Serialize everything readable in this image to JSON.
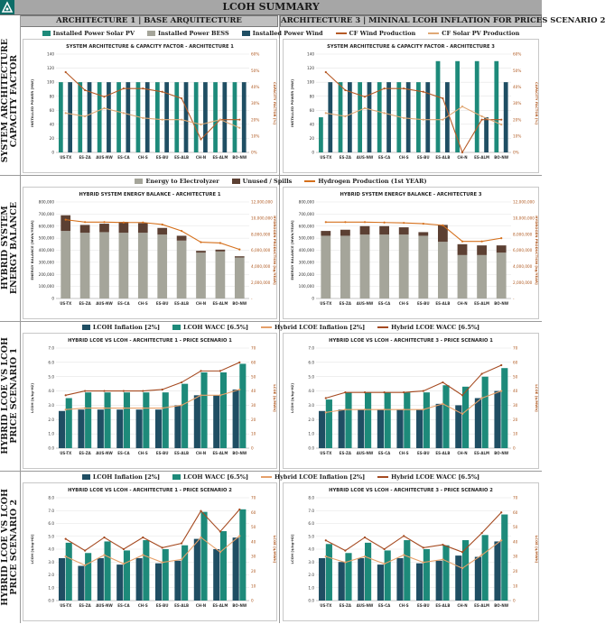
{
  "page_title": "LCOH SUMMARY",
  "columns": [
    "ARCHITECTURE 1 | BASE ARQUITECTURE",
    "ARCHITECTURE 3 | MININAL LCOH INFLATION FOR PRICES SCENARIO 2"
  ],
  "row_labels": [
    "SYSTEM ARCHITECTURE\nCAPACITY FACTOR",
    "HYBRID SYSTEM\nENERGY BALANCE",
    "HYBRID LCOE VS LCOH\nPRICE SCENARIO 1",
    "HYBRID LCOE VS LCOH\nPRICE SCENARIO 2"
  ],
  "legends": {
    "row1": [
      "Installed Power Solar PV",
      "Installed Power BESS",
      "Installed Power Wind",
      "CF Wind Production",
      "CF Solar PV Production"
    ],
    "row2": [
      "Energy to Electrolyzer",
      "Unused / Spills",
      "Hydrogen Production (1st YEAR)"
    ],
    "row3": [
      "LCOH Inflation [2%]",
      "LCOH WACC [6.5%]",
      "Hybrid LCOE Inflation [2%]",
      "Hybrid LCOE WACC [6.5%]"
    ],
    "row4": [
      "LCOH Inflation [2%]",
      "LCOH WACC [6.5%]",
      "Hybrid LCOE Inflation [2%]",
      "Hybrid LCOE WACC [6.5%]"
    ]
  },
  "colors": {
    "solar": "#1d8a7a",
    "bess": "#a5a59a",
    "wind": "#1f4e63",
    "cf_wind": "#b65a26",
    "cf_solar": "#e0a875",
    "energy": "#a5a59a",
    "unused": "#5c4033",
    "h2": "#d5701c",
    "lcoh_inf": "#1f4e63",
    "lcoh_wacc": "#1d8a7a",
    "lcoe_inf": "#e6a06a",
    "lcoe_wacc": "#a54a20"
  },
  "chart_data": [
    {
      "type": "bar",
      "id": "r1a1",
      "title": "SYSTEM ARCHITECTURE & CAPACITY FACTOR - ARCHITECTURE 1",
      "ylabel": "INSTALLED POWER [MW]",
      "y2label": "CAPACITY FACTOR [%]",
      "ylim": [
        0,
        140
      ],
      "yticks": [
        0,
        20,
        40,
        60,
        80,
        100,
        120,
        140
      ],
      "y2lim": [
        0,
        0.6
      ],
      "y2ticks": [
        "0%",
        "10%",
        "20%",
        "30%",
        "40%",
        "50%",
        "60%"
      ],
      "categories": [
        "US-TX",
        "ES-ZA",
        "AUS-NW",
        "ES-CA",
        "CH-S",
        "ES-BU",
        "ES-ALB",
        "CH-N",
        "ES-ALM",
        "BO-NW"
      ],
      "series": [
        {
          "name": "Installed Power Solar PV",
          "kind": "bar",
          "values": [
            100,
            100,
            100,
            100,
            100,
            100,
            100,
            100,
            100,
            100
          ]
        },
        {
          "name": "Installed Power BESS",
          "kind": "bar",
          "values": [
            0,
            0,
            0,
            0,
            0,
            0,
            0,
            0,
            0,
            0
          ]
        },
        {
          "name": "Installed Power Wind",
          "kind": "bar",
          "values": [
            100,
            100,
            100,
            100,
            100,
            100,
            100,
            100,
            100,
            100
          ]
        },
        {
          "name": "CF Wind Production",
          "kind": "line",
          "axis": "y2",
          "values": [
            0.49,
            0.38,
            0.34,
            0.39,
            0.39,
            0.37,
            0.33,
            0.08,
            0.2,
            0.2
          ]
        },
        {
          "name": "CF Solar PV Production",
          "kind": "line",
          "axis": "y2",
          "values": [
            0.24,
            0.22,
            0.27,
            0.24,
            0.21,
            0.2,
            0.2,
            0.17,
            0.2,
            0.15
          ]
        }
      ]
    },
    {
      "type": "bar",
      "id": "r1a3",
      "title": "SYSTEM ARCHITECTURE & CAPACITY FACTOR - ARCHITECTURE 3",
      "ylabel": "INSTALLED POWER [MW]",
      "y2label": "CAPACITY FACTOR [%]",
      "ylim": [
        0,
        140
      ],
      "yticks": [
        0,
        20,
        40,
        60,
        80,
        100,
        120,
        140
      ],
      "y2lim": [
        0,
        0.6
      ],
      "y2ticks": [
        "0%",
        "10%",
        "20%",
        "30%",
        "40%",
        "50%",
        "60%"
      ],
      "categories": [
        "US-TX",
        "ES-ZA",
        "AUS-NW",
        "ES-CA",
        "CH-S",
        "ES-BU",
        "ES-ALB",
        "CH-N",
        "ES-ALM",
        "BO-NW"
      ],
      "series": [
        {
          "name": "Installed Power Solar PV",
          "kind": "bar",
          "values": [
            50,
            100,
            100,
            100,
            100,
            100,
            130,
            130,
            130,
            130
          ]
        },
        {
          "name": "Installed Power BESS",
          "kind": "bar",
          "values": [
            0,
            0,
            0,
            0,
            0,
            0,
            0,
            0,
            0,
            0
          ]
        },
        {
          "name": "Installed Power Wind",
          "kind": "bar",
          "values": [
            100,
            100,
            100,
            100,
            100,
            100,
            100,
            0,
            50,
            100
          ]
        },
        {
          "name": "CF Wind Production",
          "kind": "line",
          "axis": "y2",
          "values": [
            0.49,
            0.38,
            0.34,
            0.39,
            0.39,
            0.37,
            0.33,
            0.0,
            0.2,
            0.2
          ]
        },
        {
          "name": "CF Solar PV Production",
          "kind": "line",
          "axis": "y2",
          "values": [
            0.24,
            0.22,
            0.27,
            0.24,
            0.21,
            0.2,
            0.2,
            0.28,
            0.22,
            0.17
          ]
        }
      ]
    },
    {
      "type": "bar",
      "id": "r2a1",
      "title": "HYBRID SYSTEM ENERGY BALANCE - ARCHITECTURE 1",
      "ylabel": "ENERGY BALANCE [MWh/YEAR]",
      "y2label": "HYDROGEN PRODUCTION [kg/YEAR]",
      "ylim": [
        0,
        800000
      ],
      "yticks": [
        "0",
        "100,000",
        "200,000",
        "300,000",
        "400,000",
        "500,000",
        "600,000",
        "700,000",
        "800,000"
      ],
      "y2lim": [
        0,
        12000000
      ],
      "y2ticks": [
        "-",
        "2,000,000",
        "4,000,000",
        "6,000,000",
        "8,000,000",
        "10,000,000",
        "12,000,000"
      ],
      "categories": [
        "US-TX",
        "ES-ZA",
        "AUS-NW",
        "ES-CA",
        "CH-S",
        "ES-BU",
        "ES-ALB",
        "CH-N",
        "ES-ALM",
        "BO-NW"
      ],
      "series": [
        {
          "name": "Energy to Electrolyzer",
          "kind": "stack",
          "values": [
            560000,
            545000,
            550000,
            545000,
            545000,
            530000,
            480000,
            380000,
            390000,
            340000
          ]
        },
        {
          "name": "Unused / Spills",
          "kind": "stack",
          "values": [
            130000,
            65000,
            70000,
            90000,
            80000,
            55000,
            40000,
            15000,
            15000,
            10000
          ]
        },
        {
          "name": "Hydrogen Production (1st YEAR)",
          "kind": "line",
          "axis": "y2",
          "values": [
            9800000,
            9500000,
            9500000,
            9450000,
            9450000,
            9200000,
            8400000,
            7000000,
            6900000,
            6100000
          ]
        }
      ]
    },
    {
      "type": "bar",
      "id": "r2a3",
      "title": "HYBRID SYSTEM ENERGY BALANCE - ARCHITECTURE 3",
      "ylabel": "ENERGY BALANCE [MWh/YEAR]",
      "y2label": "HYDROGEN PRODUCTION [kg/YEAR]",
      "ylim": [
        0,
        800000
      ],
      "yticks": [
        "0",
        "100,000",
        "200,000",
        "300,000",
        "400,000",
        "500,000",
        "600,000",
        "700,000",
        "800,000"
      ],
      "y2lim": [
        0,
        12000000
      ],
      "y2ticks": [
        "-",
        "2,000,000",
        "4,000,000",
        "6,000,000",
        "8,000,000",
        "10,000,000",
        "12,000,000"
      ],
      "categories": [
        "US-TX",
        "ES-ZA",
        "AUS-NW",
        "ES-CA",
        "CH-S",
        "ES-BU",
        "ES-ALB",
        "CH-N",
        "ES-ALM",
        "BO-NW"
      ],
      "series": [
        {
          "name": "Energy to Electrolyzer",
          "kind": "stack",
          "values": [
            520000,
            520000,
            530000,
            530000,
            530000,
            520000,
            470000,
            360000,
            360000,
            380000
          ]
        },
        {
          "name": "Unused / Spills",
          "kind": "stack",
          "values": [
            40000,
            50000,
            70000,
            70000,
            60000,
            30000,
            140000,
            90000,
            80000,
            60000
          ]
        },
        {
          "name": "Hydrogen Production (1st YEAR)",
          "kind": "line",
          "axis": "y2",
          "values": [
            9500000,
            9500000,
            9500000,
            9450000,
            9400000,
            9300000,
            9100000,
            7100000,
            7100000,
            7500000
          ]
        }
      ]
    },
    {
      "type": "bar",
      "id": "r3a1",
      "title": "HYBRID LCOE VS LCOH - ARCHITECTURE 1 - PRICE SCENARIO 1",
      "ylabel": "LCOH [$/kg-H2]",
      "y2label": "LCOE [$/MWh]",
      "ylim": [
        0,
        7
      ],
      "yticks": [
        "0.0",
        "1.0",
        "2.0",
        "3.0",
        "4.0",
        "5.0",
        "6.0",
        "7.0"
      ],
      "y2lim": [
        0,
        70
      ],
      "y2ticks": [
        "0",
        "10",
        "20",
        "30",
        "40",
        "50",
        "60",
        "70"
      ],
      "categories": [
        "US-TX",
        "ES-ZA",
        "AUS-NW",
        "ES-CA",
        "CH-S",
        "ES-BU",
        "ES-ALB",
        "CH-N",
        "ES-ALM",
        "BO-NW"
      ],
      "series": [
        {
          "name": "LCOH Inflation [2%]",
          "kind": "bar",
          "values": [
            2.6,
            2.7,
            2.7,
            2.7,
            2.7,
            2.7,
            3.0,
            3.7,
            3.7,
            4.1
          ]
        },
        {
          "name": "LCOH WACC [6.5%]",
          "kind": "bar",
          "values": [
            3.5,
            3.9,
            3.9,
            3.9,
            3.9,
            3.9,
            4.5,
            5.3,
            5.3,
            5.9
          ]
        },
        {
          "name": "Hybrid LCOE Inflation [2%]",
          "kind": "line",
          "axis": "y2",
          "values": [
            27,
            28,
            28,
            28,
            28,
            28,
            30,
            37,
            37,
            41
          ]
        },
        {
          "name": "Hybrid LCOE WACC [6.5%]",
          "kind": "line",
          "axis": "y2",
          "values": [
            37,
            40,
            40,
            40,
            40,
            41,
            46,
            54,
            54,
            60
          ]
        }
      ]
    },
    {
      "type": "bar",
      "id": "r3a3",
      "title": "HYBRID LCOE VS LCOH - ARCHITECTURE 3 - PRICE SCENARIO 1",
      "ylabel": "LCOH [$/kg-H2]",
      "y2label": "LCOE [$/MWh]",
      "ylim": [
        0,
        7
      ],
      "yticks": [
        "0.0",
        "1.0",
        "2.0",
        "3.0",
        "4.0",
        "5.0",
        "6.0",
        "7.0"
      ],
      "y2lim": [
        0,
        70
      ],
      "y2ticks": [
        "0",
        "10",
        "20",
        "30",
        "40",
        "50",
        "60",
        "70"
      ],
      "categories": [
        "US-TX",
        "ES-ZA",
        "AUS-NW",
        "ES-CA",
        "CH-S",
        "ES-BU",
        "ES-ALB",
        "CH-N",
        "ES-ALM",
        "BO-NW"
      ],
      "series": [
        {
          "name": "LCOH Inflation [2%]",
          "kind": "bar",
          "values": [
            2.6,
            2.7,
            2.7,
            2.7,
            2.7,
            2.7,
            3.1,
            3.0,
            3.5,
            4.0
          ]
        },
        {
          "name": "LCOH WACC [6.5%]",
          "kind": "bar",
          "values": [
            3.4,
            3.9,
            3.9,
            3.9,
            3.9,
            3.9,
            4.4,
            4.3,
            5.0,
            5.6
          ]
        },
        {
          "name": "Hybrid LCOE Inflation [2%]",
          "kind": "line",
          "axis": "y2",
          "values": [
            25,
            27,
            27,
            27,
            27,
            27,
            31,
            24,
            35,
            40
          ]
        },
        {
          "name": "Hybrid LCOE WACC [6.5%]",
          "kind": "line",
          "axis": "y2",
          "values": [
            35,
            39,
            39,
            39,
            39,
            40,
            46,
            37,
            52,
            58
          ]
        }
      ]
    },
    {
      "type": "bar",
      "id": "r4a1",
      "title": "HYBRID LCOE VS LCOH - ARCHITECTURE 1 - PRICE SCENARIO 2",
      "ylabel": "LCOH [$/kg-H2]",
      "y2label": "LCOE [$/MWh]",
      "ylim": [
        0,
        8
      ],
      "yticks": [
        "0.0",
        "1.0",
        "2.0",
        "3.0",
        "4.0",
        "5.0",
        "6.0",
        "7.0",
        "8.0"
      ],
      "y2lim": [
        0,
        70
      ],
      "y2ticks": [
        "0",
        "10",
        "20",
        "30",
        "40",
        "50",
        "60",
        "70"
      ],
      "categories": [
        "US-TX",
        "ES-ZA",
        "AUS-NW",
        "ES-CA",
        "CH-S",
        "ES-BU",
        "ES-ALB",
        "CH-N",
        "ES-ALM",
        "BO-NW"
      ],
      "series": [
        {
          "name": "LCOH Inflation [2%]",
          "kind": "bar",
          "values": [
            3.3,
            2.7,
            3.3,
            2.8,
            3.3,
            2.9,
            3.1,
            4.8,
            4.0,
            4.9
          ]
        },
        {
          "name": "LCOH WACC [6.5%]",
          "kind": "bar",
          "values": [
            4.5,
            3.7,
            4.6,
            3.9,
            4.7,
            4.0,
            4.3,
            6.9,
            5.4,
            7.1
          ]
        },
        {
          "name": "Hybrid LCOE Inflation [2%]",
          "kind": "line",
          "axis": "y2",
          "values": [
            30,
            24,
            31,
            25,
            31,
            26,
            28,
            43,
            33,
            44
          ]
        },
        {
          "name": "Hybrid LCOE WACC [6.5%]",
          "kind": "line",
          "axis": "y2",
          "values": [
            42,
            34,
            43,
            35,
            43,
            36,
            39,
            61,
            47,
            62
          ]
        }
      ]
    },
    {
      "type": "bar",
      "id": "r4a3",
      "title": "HYBRID LCOE VS LCOH - ARCHITECTURE 3 - PRICE SCENARIO 2",
      "ylabel": "LCOH [$/kg-H2]",
      "y2label": "LCOE [$/MWh]",
      "ylim": [
        0,
        8
      ],
      "yticks": [
        "0.0",
        "1.0",
        "2.0",
        "3.0",
        "4.0",
        "5.0",
        "6.0",
        "7.0",
        "8.0"
      ],
      "y2lim": [
        0,
        70
      ],
      "y2ticks": [
        "0",
        "10",
        "20",
        "30",
        "40",
        "50",
        "60",
        "70"
      ],
      "categories": [
        "US-TX",
        "ES-ZA",
        "AUS-NW",
        "ES-CA",
        "CH-S",
        "ES-BU",
        "ES-ALB",
        "CH-N",
        "ES-ALM",
        "BO-NW"
      ],
      "series": [
        {
          "name": "LCOH Inflation [2%]",
          "kind": "bar",
          "values": [
            3.3,
            3.0,
            3.3,
            2.8,
            3.3,
            2.9,
            3.1,
            3.5,
            3.4,
            4.6
          ]
        },
        {
          "name": "LCOH WACC [6.5%]",
          "kind": "bar",
          "values": [
            4.4,
            3.7,
            4.5,
            3.9,
            4.7,
            4.0,
            4.3,
            4.7,
            5.1,
            6.7
          ]
        },
        {
          "name": "Hybrid LCOE Inflation [2%]",
          "kind": "line",
          "axis": "y2",
          "values": [
            30,
            26,
            30,
            25,
            31,
            26,
            28,
            22,
            31,
            41
          ]
        },
        {
          "name": "Hybrid LCOE WACC [6.5%]",
          "kind": "line",
          "axis": "y2",
          "values": [
            41,
            34,
            43,
            35,
            44,
            36,
            38,
            33,
            46,
            60
          ]
        }
      ]
    }
  ]
}
